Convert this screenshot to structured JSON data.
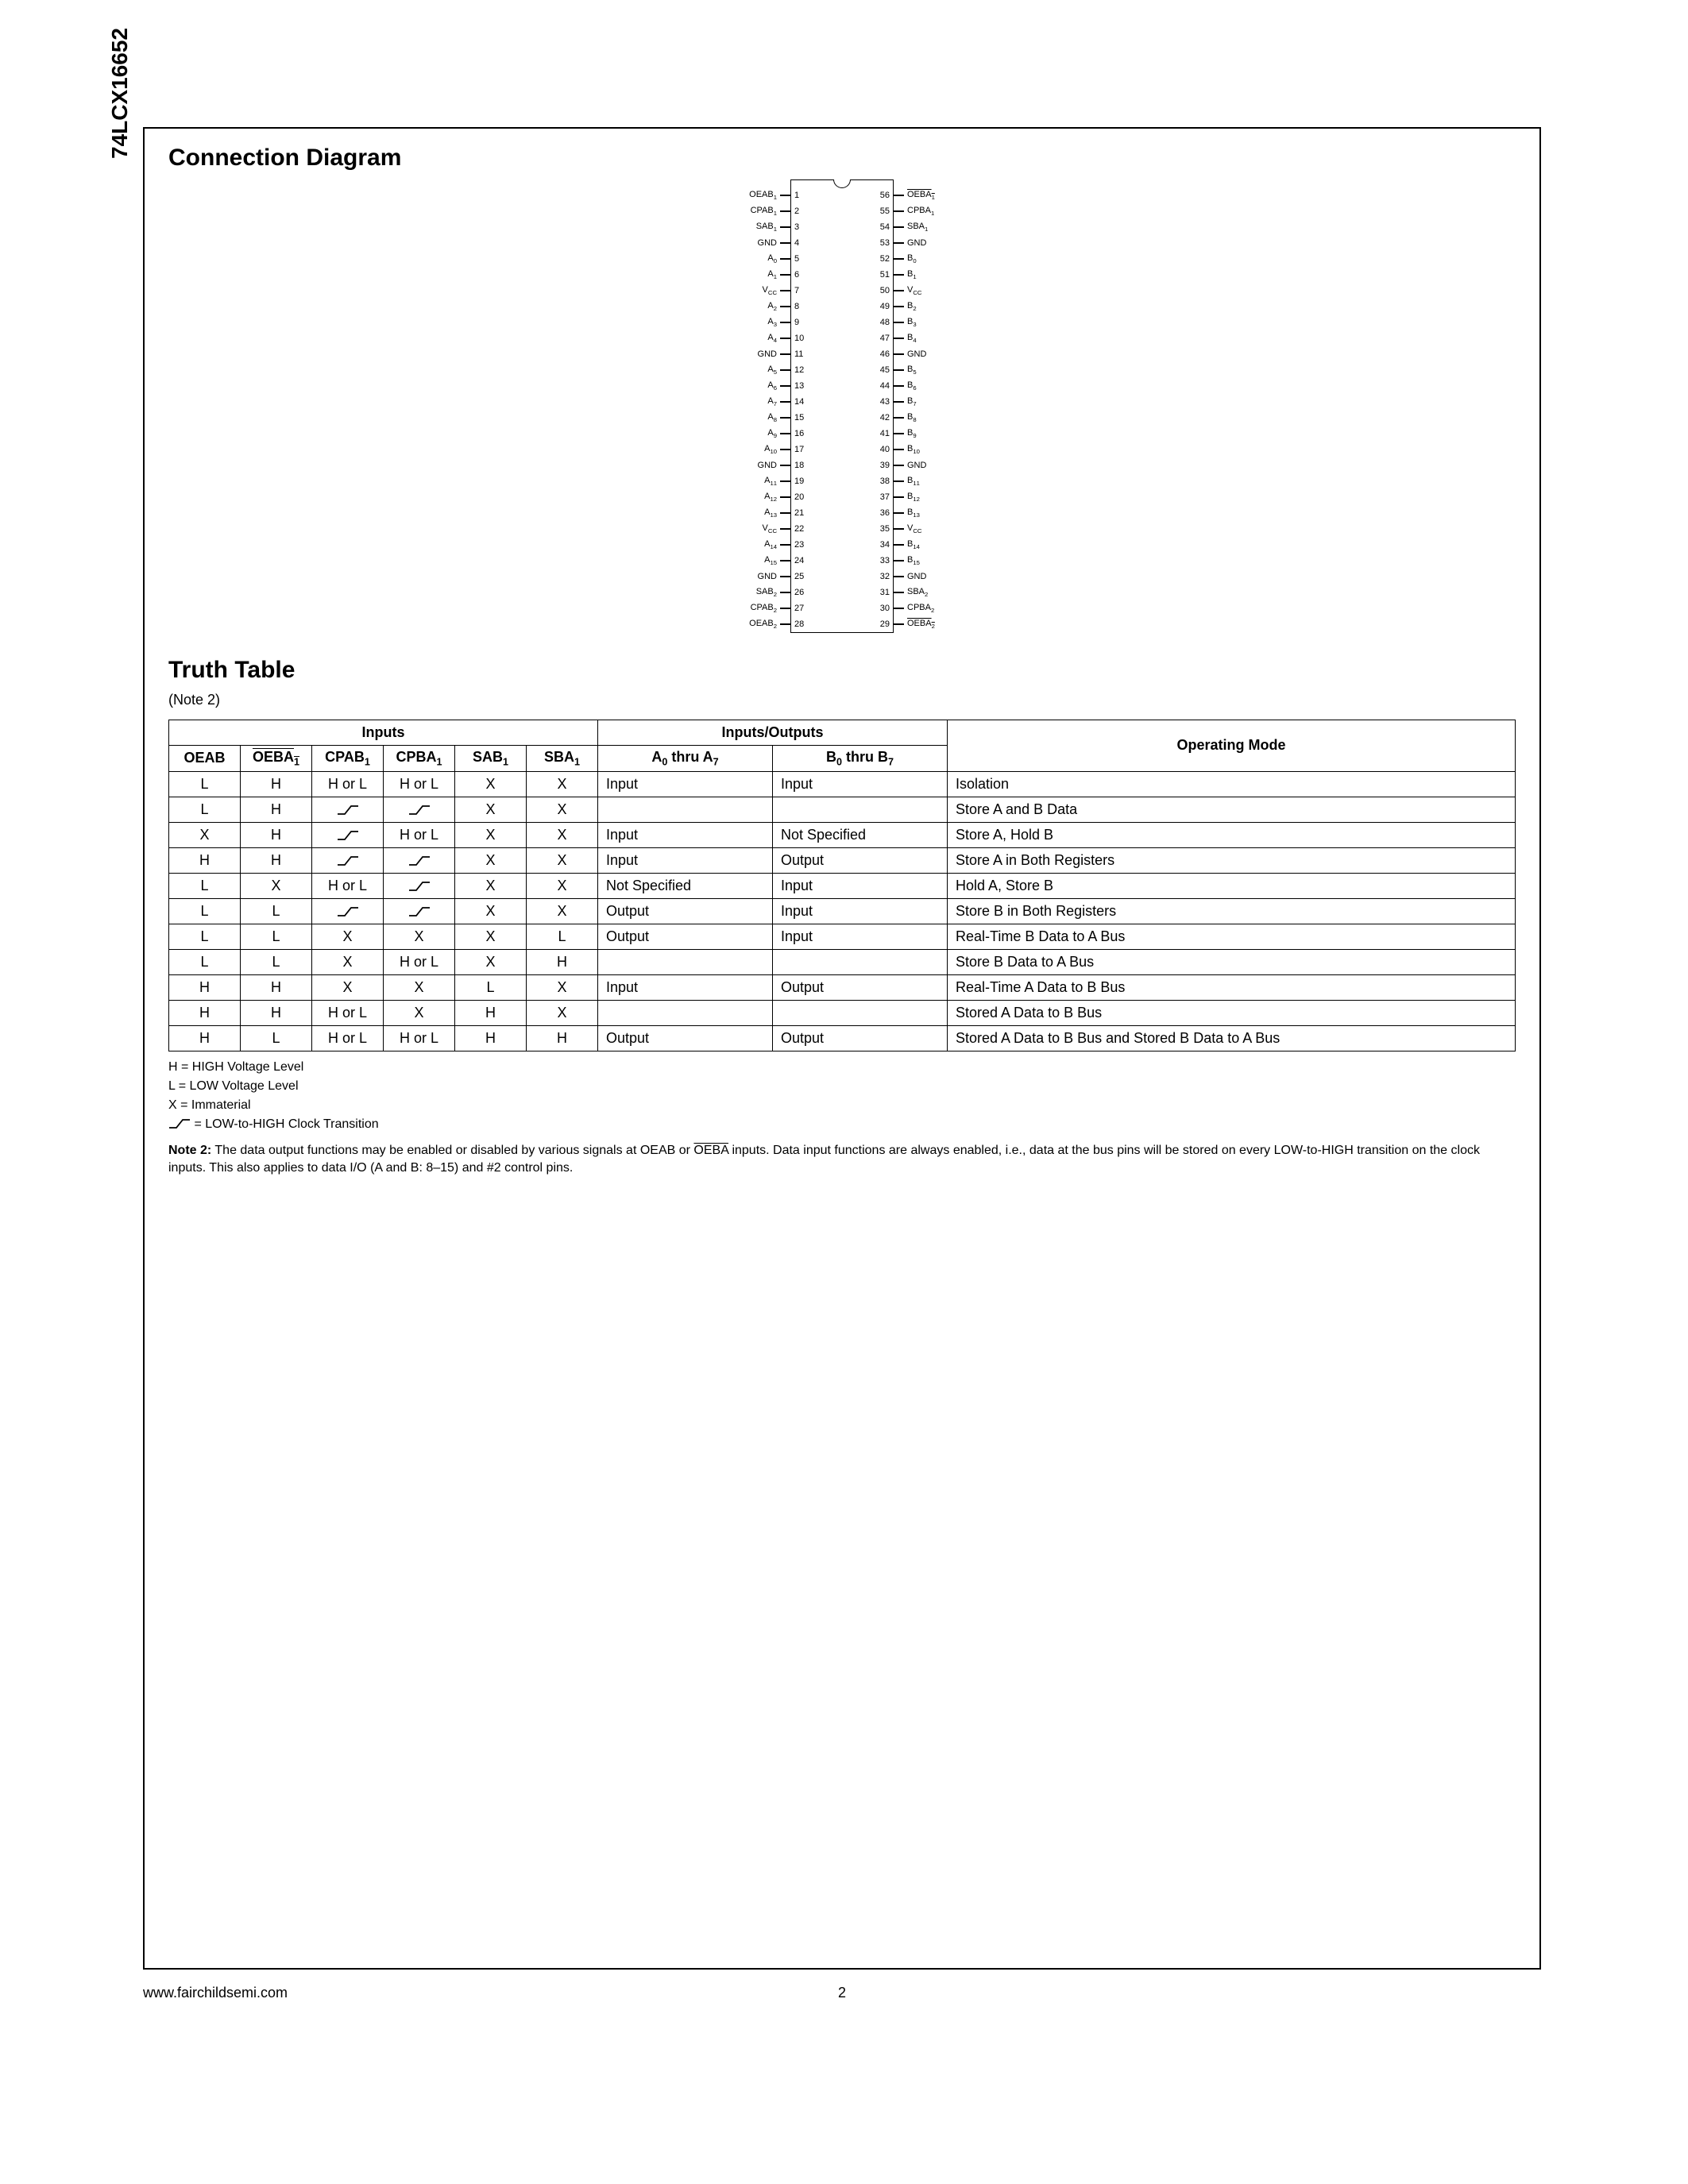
{
  "part_number": "74LCX16652",
  "footer_url": "www.fairchildsemi.com",
  "page_number": "2",
  "sections": {
    "conn_title": "Connection Diagram",
    "truth_title": "Truth Table",
    "truth_note_ref": "(Note 2)"
  },
  "diagram": {
    "pin_count": 56,
    "left_pins": [
      {
        "n": 1,
        "l": "OEAB₁"
      },
      {
        "n": 2,
        "l": "CPAB₁"
      },
      {
        "n": 3,
        "l": "SAB₁"
      },
      {
        "n": 4,
        "l": "GND"
      },
      {
        "n": 5,
        "l": "A₀"
      },
      {
        "n": 6,
        "l": "A₁"
      },
      {
        "n": 7,
        "l": "V_CC"
      },
      {
        "n": 8,
        "l": "A₂"
      },
      {
        "n": 9,
        "l": "A₃"
      },
      {
        "n": 10,
        "l": "A₄"
      },
      {
        "n": 11,
        "l": "GND"
      },
      {
        "n": 12,
        "l": "A₅"
      },
      {
        "n": 13,
        "l": "A₆"
      },
      {
        "n": 14,
        "l": "A₇"
      },
      {
        "n": 15,
        "l": "A₈"
      },
      {
        "n": 16,
        "l": "A₉"
      },
      {
        "n": 17,
        "l": "A₁₀"
      },
      {
        "n": 18,
        "l": "GND"
      },
      {
        "n": 19,
        "l": "A₁₁"
      },
      {
        "n": 20,
        "l": "A₁₂"
      },
      {
        "n": 21,
        "l": "A₁₃"
      },
      {
        "n": 22,
        "l": "V_CC"
      },
      {
        "n": 23,
        "l": "A₁₄"
      },
      {
        "n": 24,
        "l": "A₁₅"
      },
      {
        "n": 25,
        "l": "GND"
      },
      {
        "n": 26,
        "l": "SAB₂"
      },
      {
        "n": 27,
        "l": "CPAB₂"
      },
      {
        "n": 28,
        "l": "OEAB₂"
      }
    ],
    "right_pins": [
      {
        "n": 56,
        "l": "OEBA₁",
        "ov": true
      },
      {
        "n": 55,
        "l": "CPBA₁"
      },
      {
        "n": 54,
        "l": "SBA₁"
      },
      {
        "n": 53,
        "l": "GND"
      },
      {
        "n": 52,
        "l": "B₀"
      },
      {
        "n": 51,
        "l": "B₁"
      },
      {
        "n": 50,
        "l": "V_CC"
      },
      {
        "n": 49,
        "l": "B₂"
      },
      {
        "n": 48,
        "l": "B₃"
      },
      {
        "n": 47,
        "l": "B₄"
      },
      {
        "n": 46,
        "l": "GND"
      },
      {
        "n": 45,
        "l": "B₅"
      },
      {
        "n": 44,
        "l": "B₆"
      },
      {
        "n": 43,
        "l": "B₇"
      },
      {
        "n": 42,
        "l": "B₈"
      },
      {
        "n": 41,
        "l": "B₉"
      },
      {
        "n": 40,
        "l": "B₁₀"
      },
      {
        "n": 39,
        "l": "GND"
      },
      {
        "n": 38,
        "l": "B₁₁"
      },
      {
        "n": 37,
        "l": "B₁₂"
      },
      {
        "n": 36,
        "l": "B₁₃"
      },
      {
        "n": 35,
        "l": "V_CC"
      },
      {
        "n": 34,
        "l": "B₁₄"
      },
      {
        "n": 33,
        "l": "B₁₅"
      },
      {
        "n": 32,
        "l": "GND"
      },
      {
        "n": 31,
        "l": "SBA₂"
      },
      {
        "n": 30,
        "l": "CPBA₂"
      },
      {
        "n": 29,
        "l": "OEBA₂",
        "ov": true
      }
    ]
  },
  "truth_table": {
    "group_headers": {
      "inputs": "Inputs",
      "io": "Inputs/Outputs",
      "mode": "Operating Mode"
    },
    "col_headers": {
      "oeab": "OEAB",
      "oeba": "OEBA₁",
      "cpab": "CPAB₁",
      "cpba": "CPBA₁",
      "sab": "SAB₁",
      "sba": "SBA₁",
      "a": "A₀ thru A₇",
      "b": "B₀ thru B₇"
    },
    "rows": [
      {
        "oeab": "L",
        "oeba": "H",
        "cpab": "H or L",
        "cpba": "H or L",
        "sab": "X",
        "sba": "X",
        "a": "Input",
        "b": "Input",
        "mode": "Isolation"
      },
      {
        "oeab": "L",
        "oeba": "H",
        "cpab": "↗",
        "cpba": "↗",
        "sab": "X",
        "sba": "X",
        "a": "",
        "b": "",
        "mode": "Store A and B Data"
      },
      {
        "oeab": "X",
        "oeba": "H",
        "cpab": "↗",
        "cpba": "H or L",
        "sab": "X",
        "sba": "X",
        "a": "Input",
        "b": "Not Specified",
        "mode": "Store A, Hold B"
      },
      {
        "oeab": "H",
        "oeba": "H",
        "cpab": "↗",
        "cpba": "↗",
        "sab": "X",
        "sba": "X",
        "a": "Input",
        "b": "Output",
        "mode": "Store A in Both Registers"
      },
      {
        "oeab": "L",
        "oeba": "X",
        "cpab": "H or L",
        "cpba": "↗",
        "sab": "X",
        "sba": "X",
        "a": "Not Specified",
        "b": "Input",
        "mode": "Hold A, Store B"
      },
      {
        "oeab": "L",
        "oeba": "L",
        "cpab": "↗",
        "cpba": "↗",
        "sab": "X",
        "sba": "X",
        "a": "Output",
        "b": "Input",
        "mode": "Store B in Both Registers"
      },
      {
        "oeab": "L",
        "oeba": "L",
        "cpab": "X",
        "cpba": "X",
        "sab": "X",
        "sba": "L",
        "a": "Output",
        "b": "Input",
        "mode": "Real-Time B Data to A Bus"
      },
      {
        "oeab": "L",
        "oeba": "L",
        "cpab": "X",
        "cpba": "H or L",
        "sab": "X",
        "sba": "H",
        "a": "",
        "b": "",
        "mode": "Store B Data to A Bus"
      },
      {
        "oeab": "H",
        "oeba": "H",
        "cpab": "X",
        "cpba": "X",
        "sab": "L",
        "sba": "X",
        "a": "Input",
        "b": "Output",
        "mode": "Real-Time A Data to B Bus"
      },
      {
        "oeab": "H",
        "oeba": "H",
        "cpab": "H or L",
        "cpba": "X",
        "sab": "H",
        "sba": "X",
        "a": "",
        "b": "",
        "mode": "Stored A Data to B Bus"
      },
      {
        "oeab": "H",
        "oeba": "L",
        "cpab": "H or L",
        "cpba": "H or L",
        "sab": "H",
        "sba": "H",
        "a": "Output",
        "b": "Output",
        "mode": "Stored A Data to B Bus and Stored B Data to A Bus"
      }
    ],
    "legend": [
      "H = HIGH Voltage Level",
      "L = LOW Voltage Level",
      "X = Immaterial",
      "↗ = LOW-to-HIGH Clock Transition"
    ],
    "note2_label": "Note 2:",
    "note2_text": "The data output functions may be enabled or disabled by various signals at OEAB or OEBA inputs. Data input functions are always enabled, i.e., data at the bus pins will be stored on every LOW-to-HIGH transition on the clock inputs. This also applies to data I/O (A and B: 8–15) and #2 control pins."
  }
}
